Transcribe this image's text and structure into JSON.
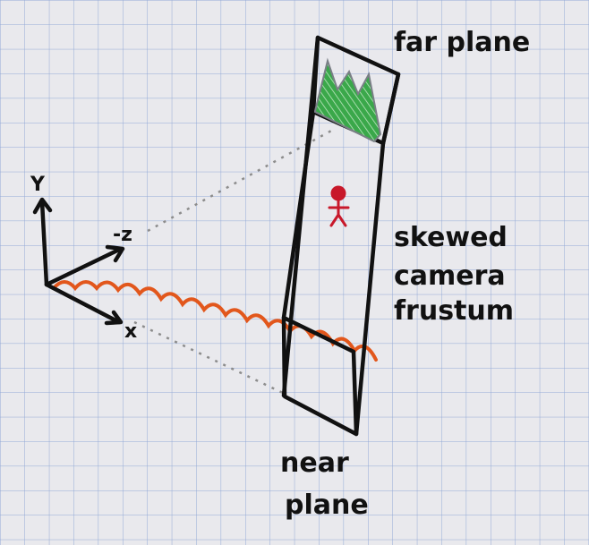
{
  "labels": {
    "far_plane": "far plane",
    "skewed_line1": "skewed",
    "skewed_line2": "camera",
    "skewed_line3": "frustum",
    "near_line1": "near",
    "near_line2": "plane"
  },
  "axes": {
    "y": "Y",
    "neg_z": "-z",
    "x": "x"
  },
  "colors": {
    "paper": "#e9e9ed",
    "grid": "#93a9d6",
    "ink": "#111111",
    "mountains": "#2f9b3e",
    "mountain_outline": "#7a7f86",
    "person": "#c8182a",
    "ground": "#e2571c",
    "dotted": "#8c8c8c"
  }
}
